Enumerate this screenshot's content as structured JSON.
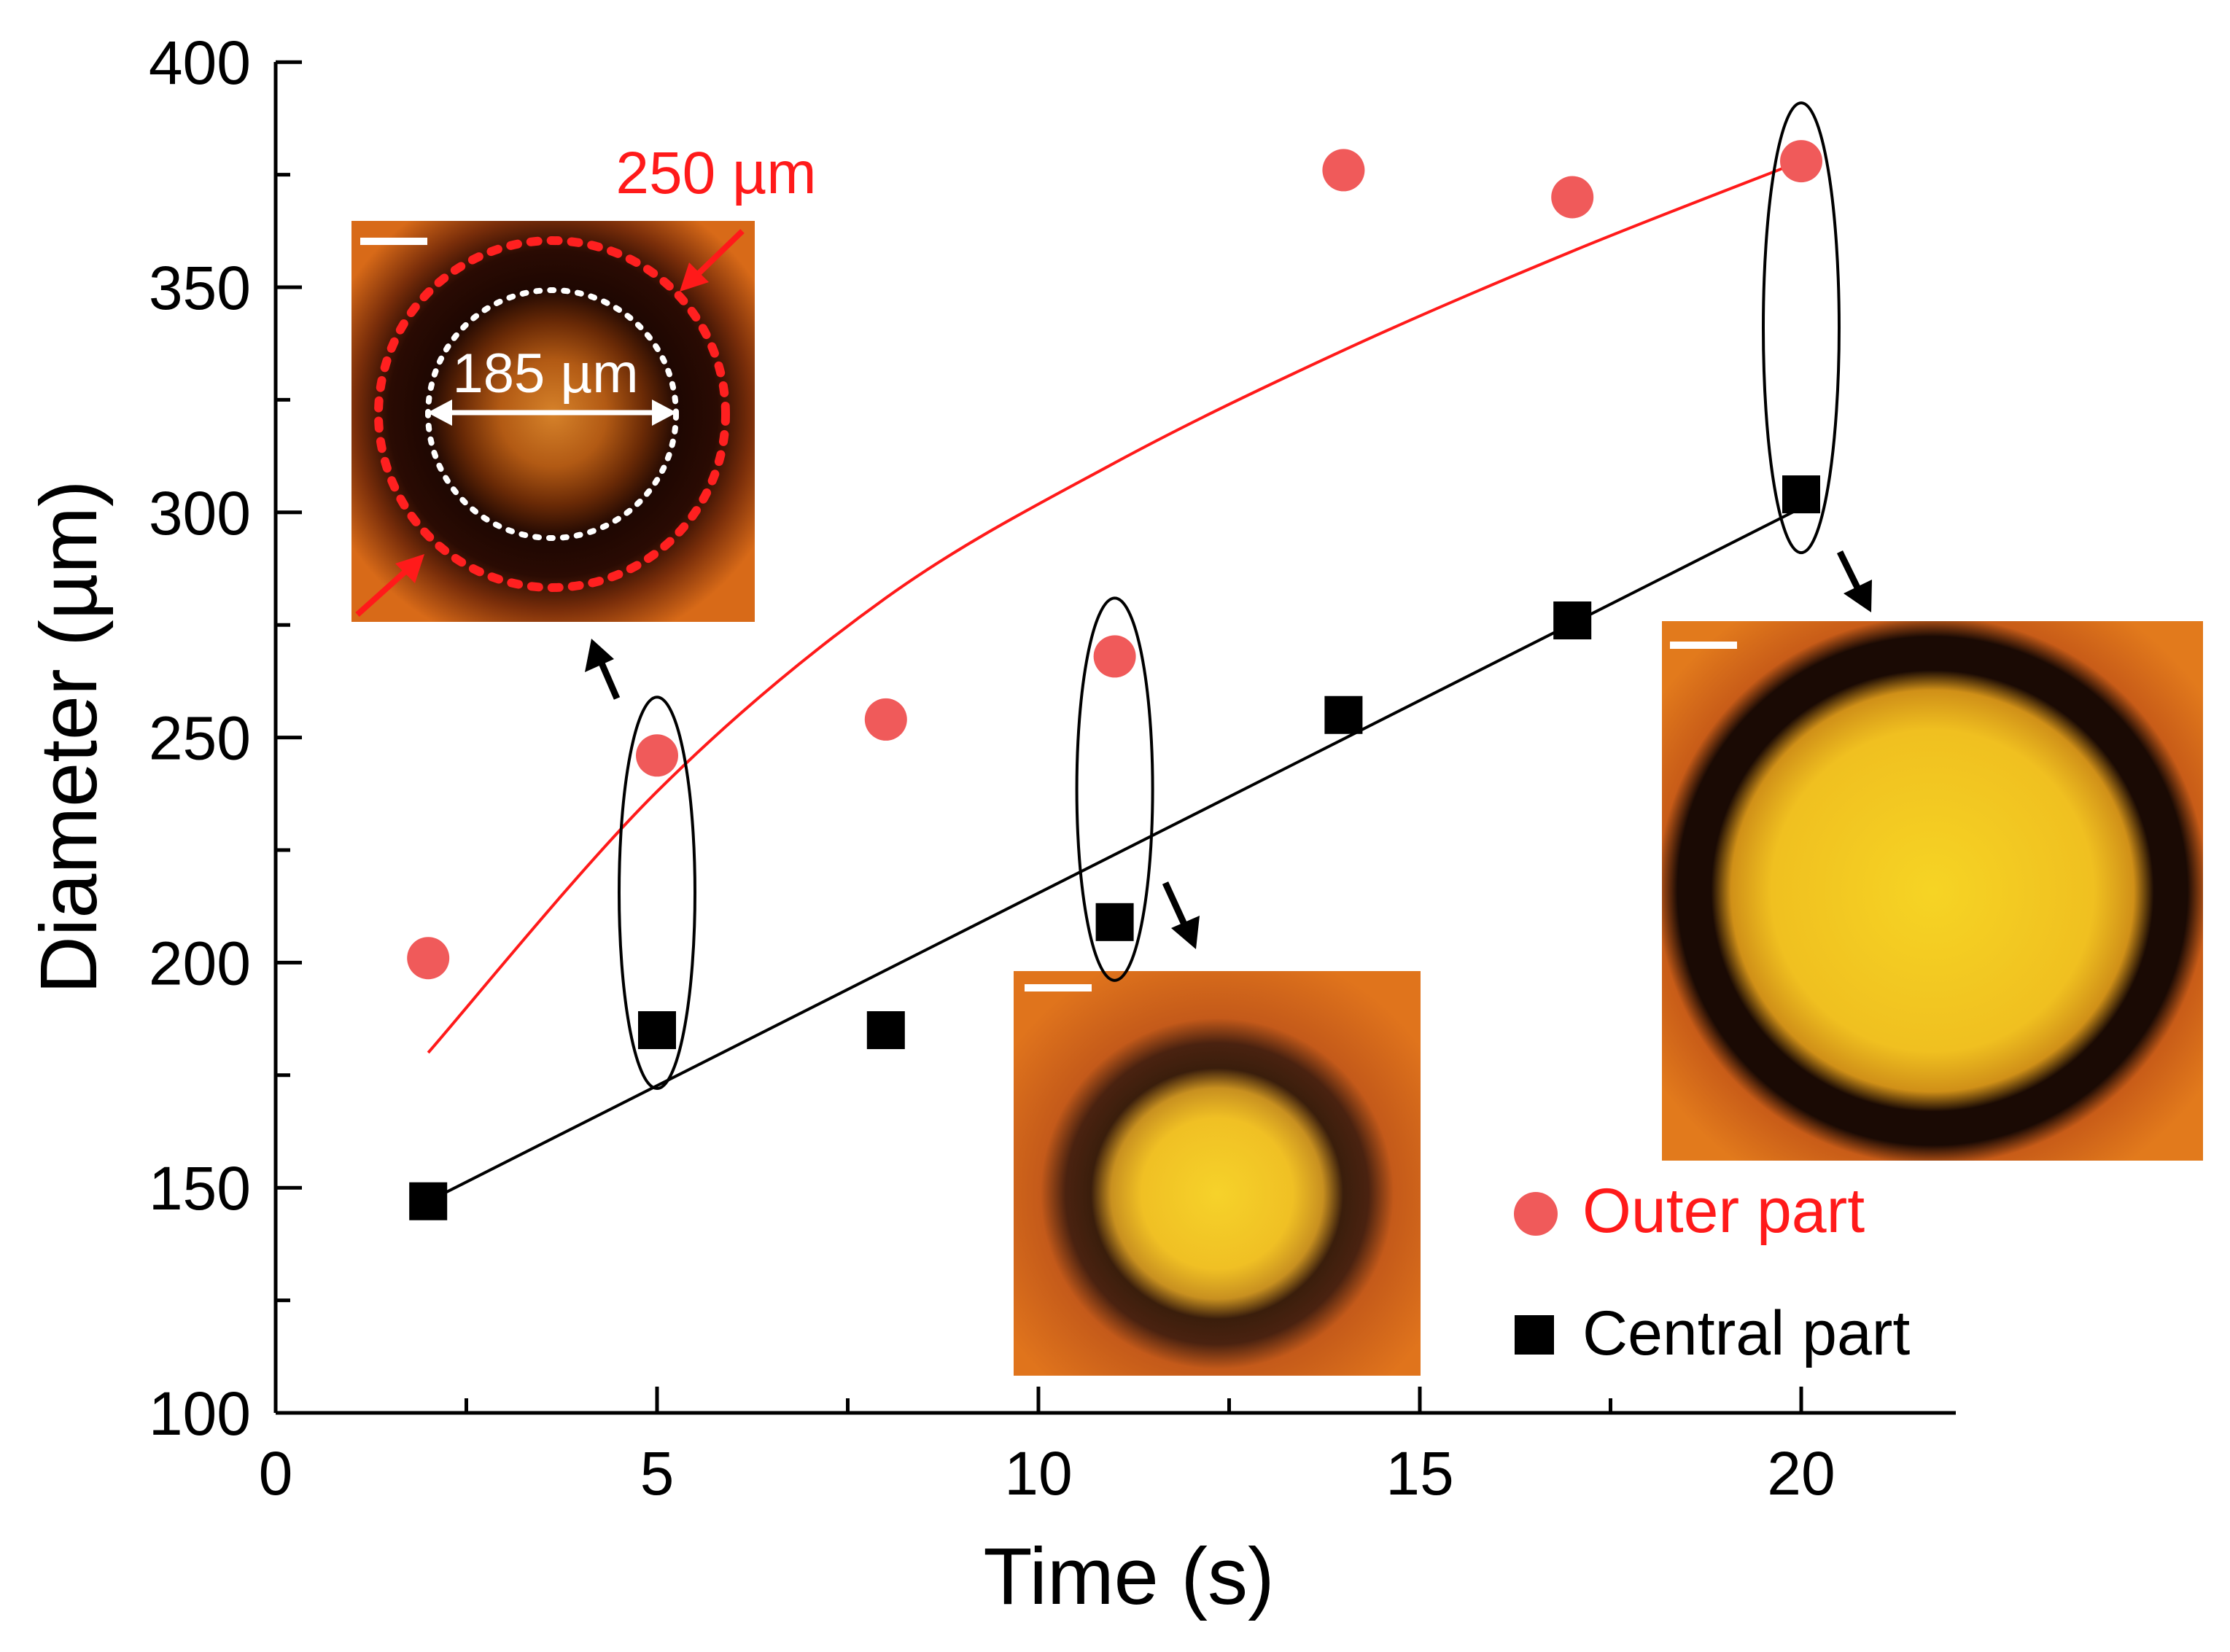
{
  "chart_data": {
    "type": "scatter",
    "title": "",
    "xlabel": "Time (s)",
    "ylabel": "Diameter (µm)",
    "xlim": [
      0,
      22
    ],
    "ylim": [
      100,
      400
    ],
    "x_ticks": [
      0,
      5,
      10,
      15,
      20
    ],
    "y_ticks": [
      100,
      150,
      200,
      250,
      300,
      350,
      400
    ],
    "grid": false,
    "legend_position": "bottom-right",
    "x": [
      2,
      5,
      8,
      11,
      14,
      17,
      20
    ],
    "series": [
      {
        "name": "Outer part",
        "marker": "circle",
        "color": "#f05a5a",
        "values": [
          201,
          246,
          254,
          268,
          376,
          370,
          378
        ],
        "fit": {
          "kind": "curve",
          "color": "#ff1a1a",
          "points": [
            [
              2,
              180
            ],
            [
              5,
              238
            ],
            [
              8,
              281
            ],
            [
              11,
              311
            ],
            [
              14,
              336
            ],
            [
              17,
              358
            ],
            [
              20,
              378
            ]
          ]
        }
      },
      {
        "name": "Central part",
        "marker": "square",
        "color": "#000000",
        "values": [
          147,
          185,
          185,
          209,
          255,
          276,
          304
        ],
        "fit": {
          "kind": "line",
          "color": "#000000",
          "points": [
            [
              2,
              147
            ],
            [
              20,
              301
            ]
          ]
        }
      }
    ],
    "highlighted_x": [
      5,
      11,
      20
    ],
    "insets": [
      {
        "id": "inset-t5",
        "linked_x": 5,
        "annotations": {
          "outer": "250 µm",
          "inner": "185 µm"
        }
      },
      {
        "id": "inset-t11",
        "linked_x": 11
      },
      {
        "id": "inset-t20",
        "linked_x": 20
      }
    ]
  },
  "colors": {
    "axis": "#000000",
    "outer": "#f05a5a",
    "outer_fit": "#ff1a1a",
    "central": "#000000",
    "annotation_red": "#ff1a1a"
  }
}
